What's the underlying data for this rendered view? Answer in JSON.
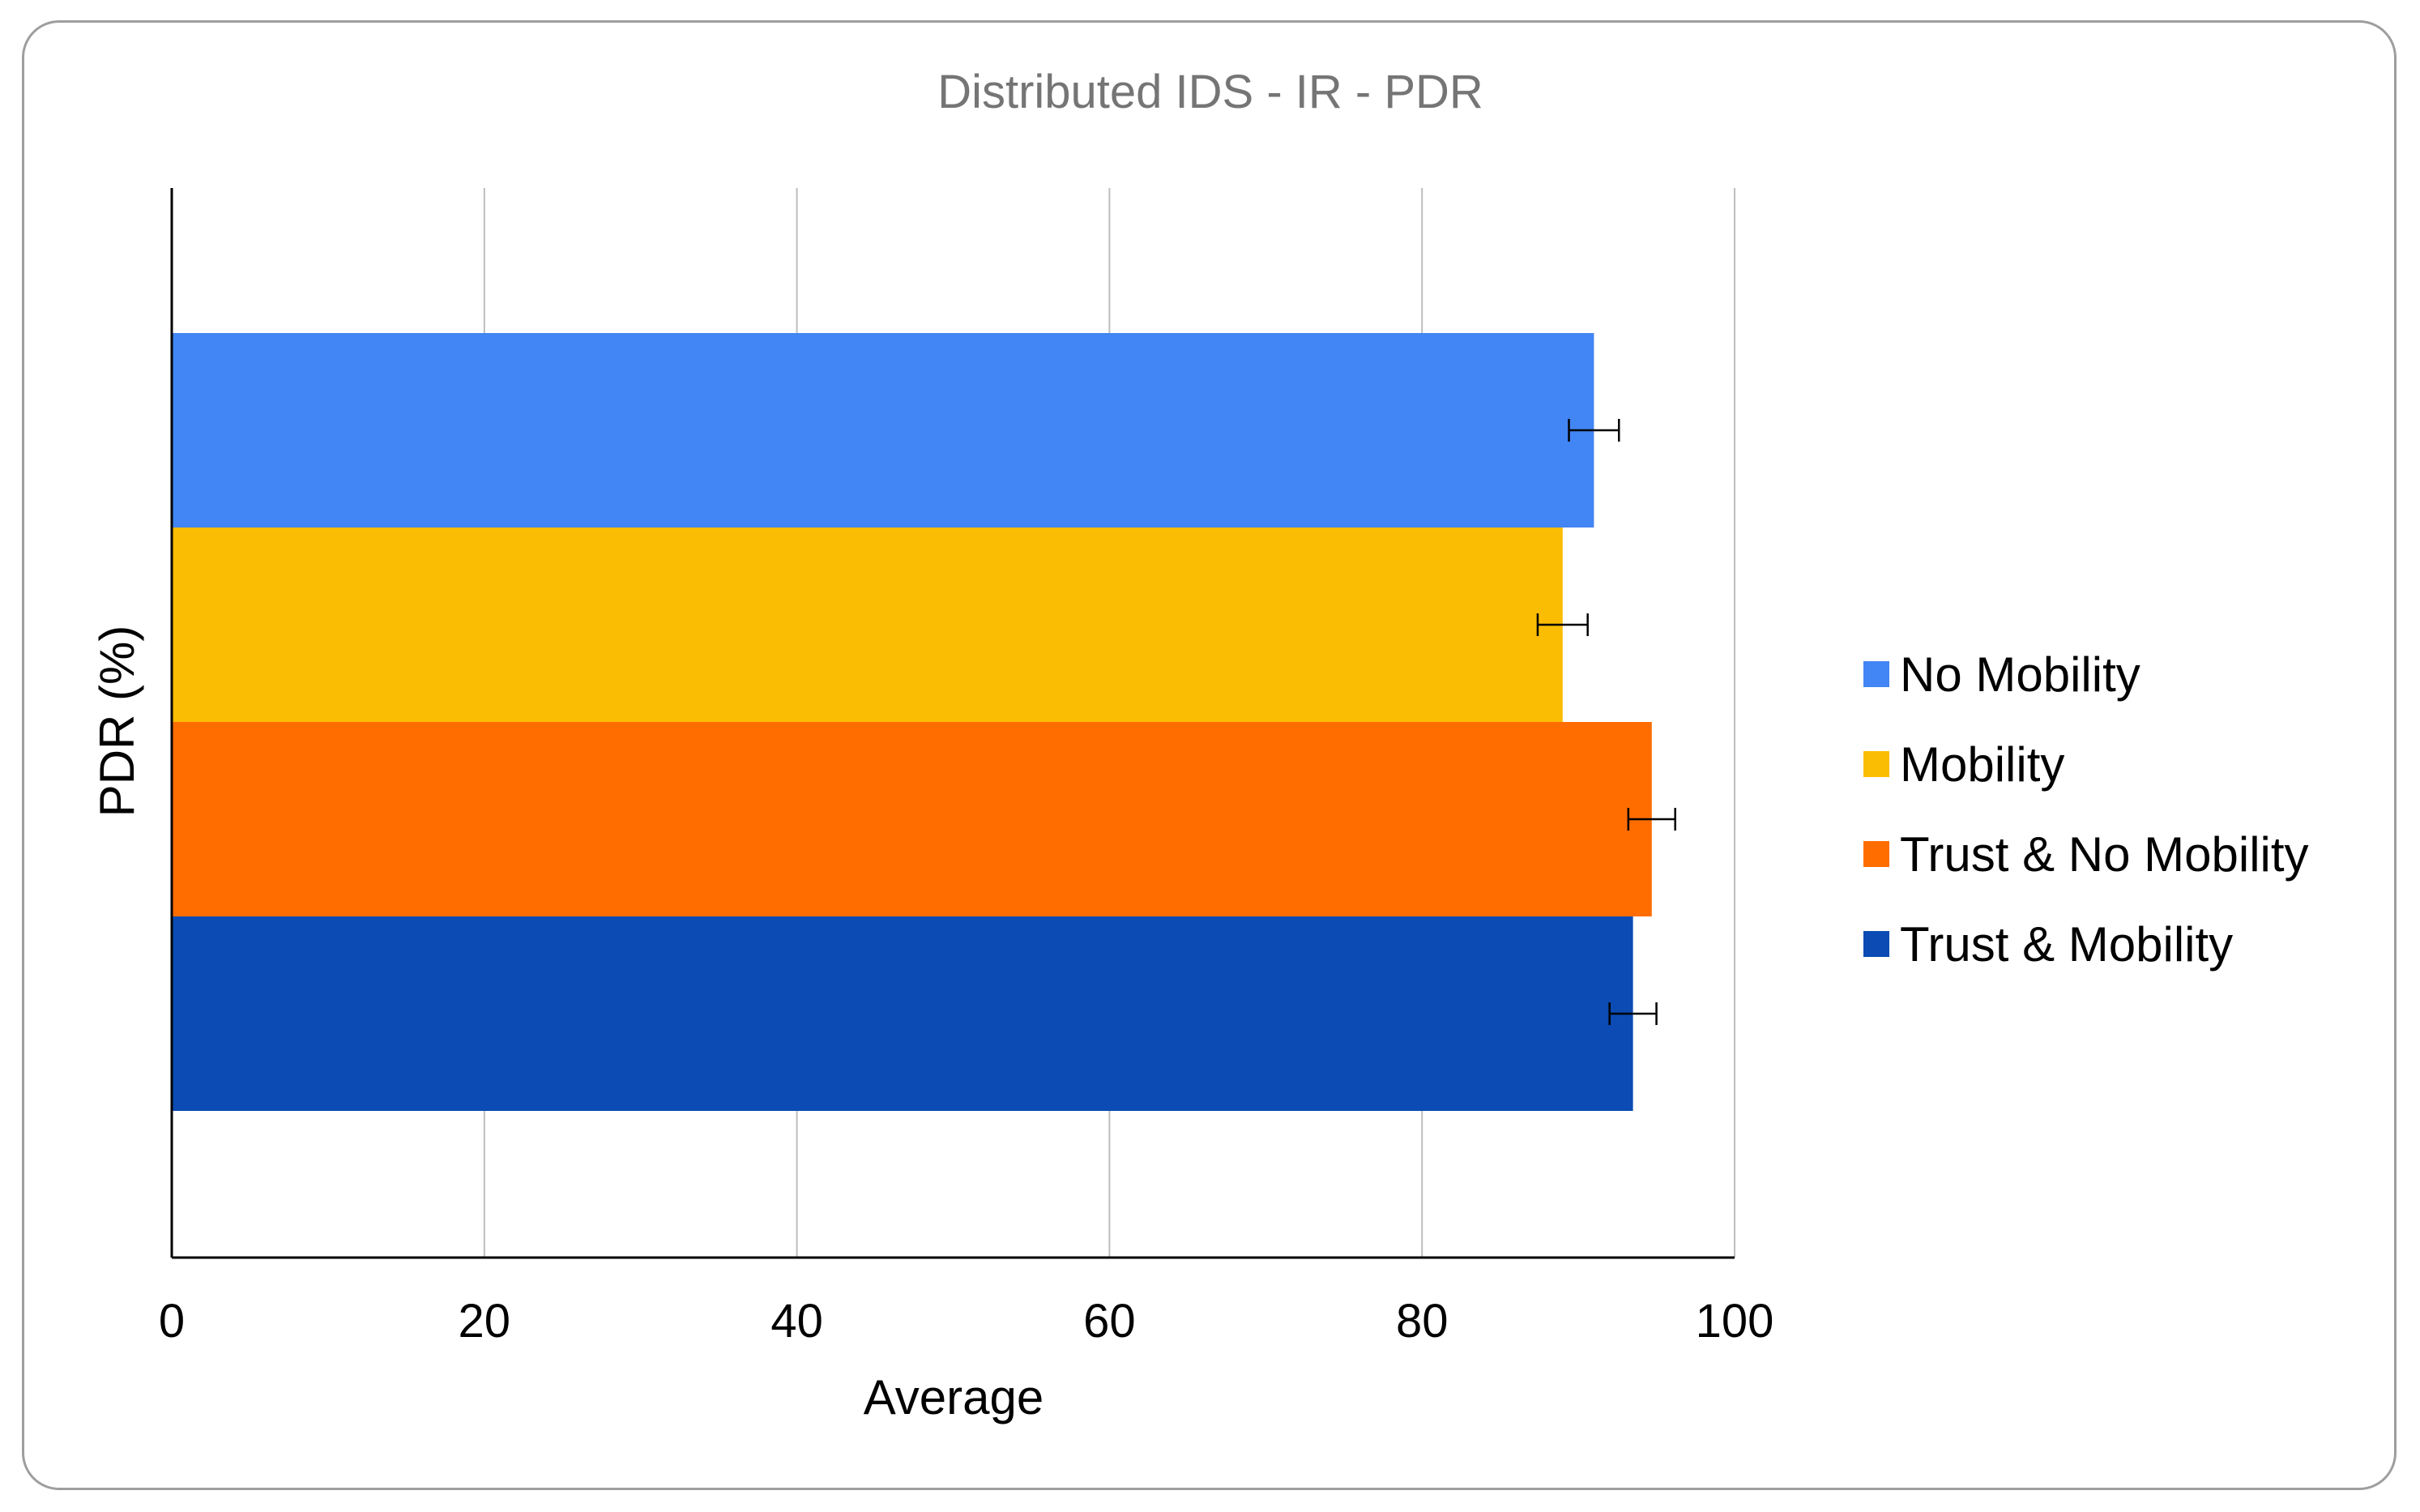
{
  "chart_data": {
    "type": "bar",
    "orientation": "horizontal",
    "title": "Distributed IDS - IR - PDR",
    "xlabel": "Average",
    "ylabel": "PDR (%)",
    "xlim": [
      0,
      100
    ],
    "x_ticks": [
      "0",
      "20",
      "40",
      "60",
      "80",
      "100"
    ],
    "grid": true,
    "legend_position": "right",
    "categories": [
      ""
    ],
    "series": [
      {
        "name": "No Mobility",
        "values": [
          91
        ],
        "error": [
          1.6
        ],
        "color": "#4285f4"
      },
      {
        "name": "Mobility",
        "values": [
          89
        ],
        "error": [
          1.6
        ],
        "color": "#fbbc04"
      },
      {
        "name": "Trust & No Mobility",
        "values": [
          94.7
        ],
        "error": [
          1.5
        ],
        "color": "#ff6d01"
      },
      {
        "name": "Trust & Mobility",
        "values": [
          93.5
        ],
        "error": [
          1.5
        ],
        "color": "#0b4bb3"
      }
    ]
  }
}
